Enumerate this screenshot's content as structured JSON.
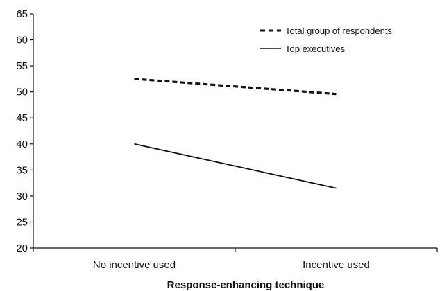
{
  "chart_data": {
    "type": "line",
    "title": "",
    "xlabel": "Response-enhancing technique",
    "ylabel": "",
    "categories": [
      "No incentive used",
      "Incentive used"
    ],
    "ylim": [
      20,
      65
    ],
    "yticks": [
      20,
      25,
      30,
      35,
      40,
      45,
      50,
      55,
      60,
      65
    ],
    "ytick_labels": [
      "20",
      "25",
      "30",
      "35",
      "40",
      "45",
      "50",
      "55",
      "60",
      "65"
    ],
    "grid": false,
    "legend_position": "top-right",
    "series": [
      {
        "name": "Total group of respondents",
        "values": [
          52.5,
          49.6
        ],
        "style": "dashed",
        "color": "#111111"
      },
      {
        "name": "Top executives",
        "values": [
          40,
          31.5
        ],
        "style": "solid",
        "color": "#111111"
      }
    ]
  }
}
